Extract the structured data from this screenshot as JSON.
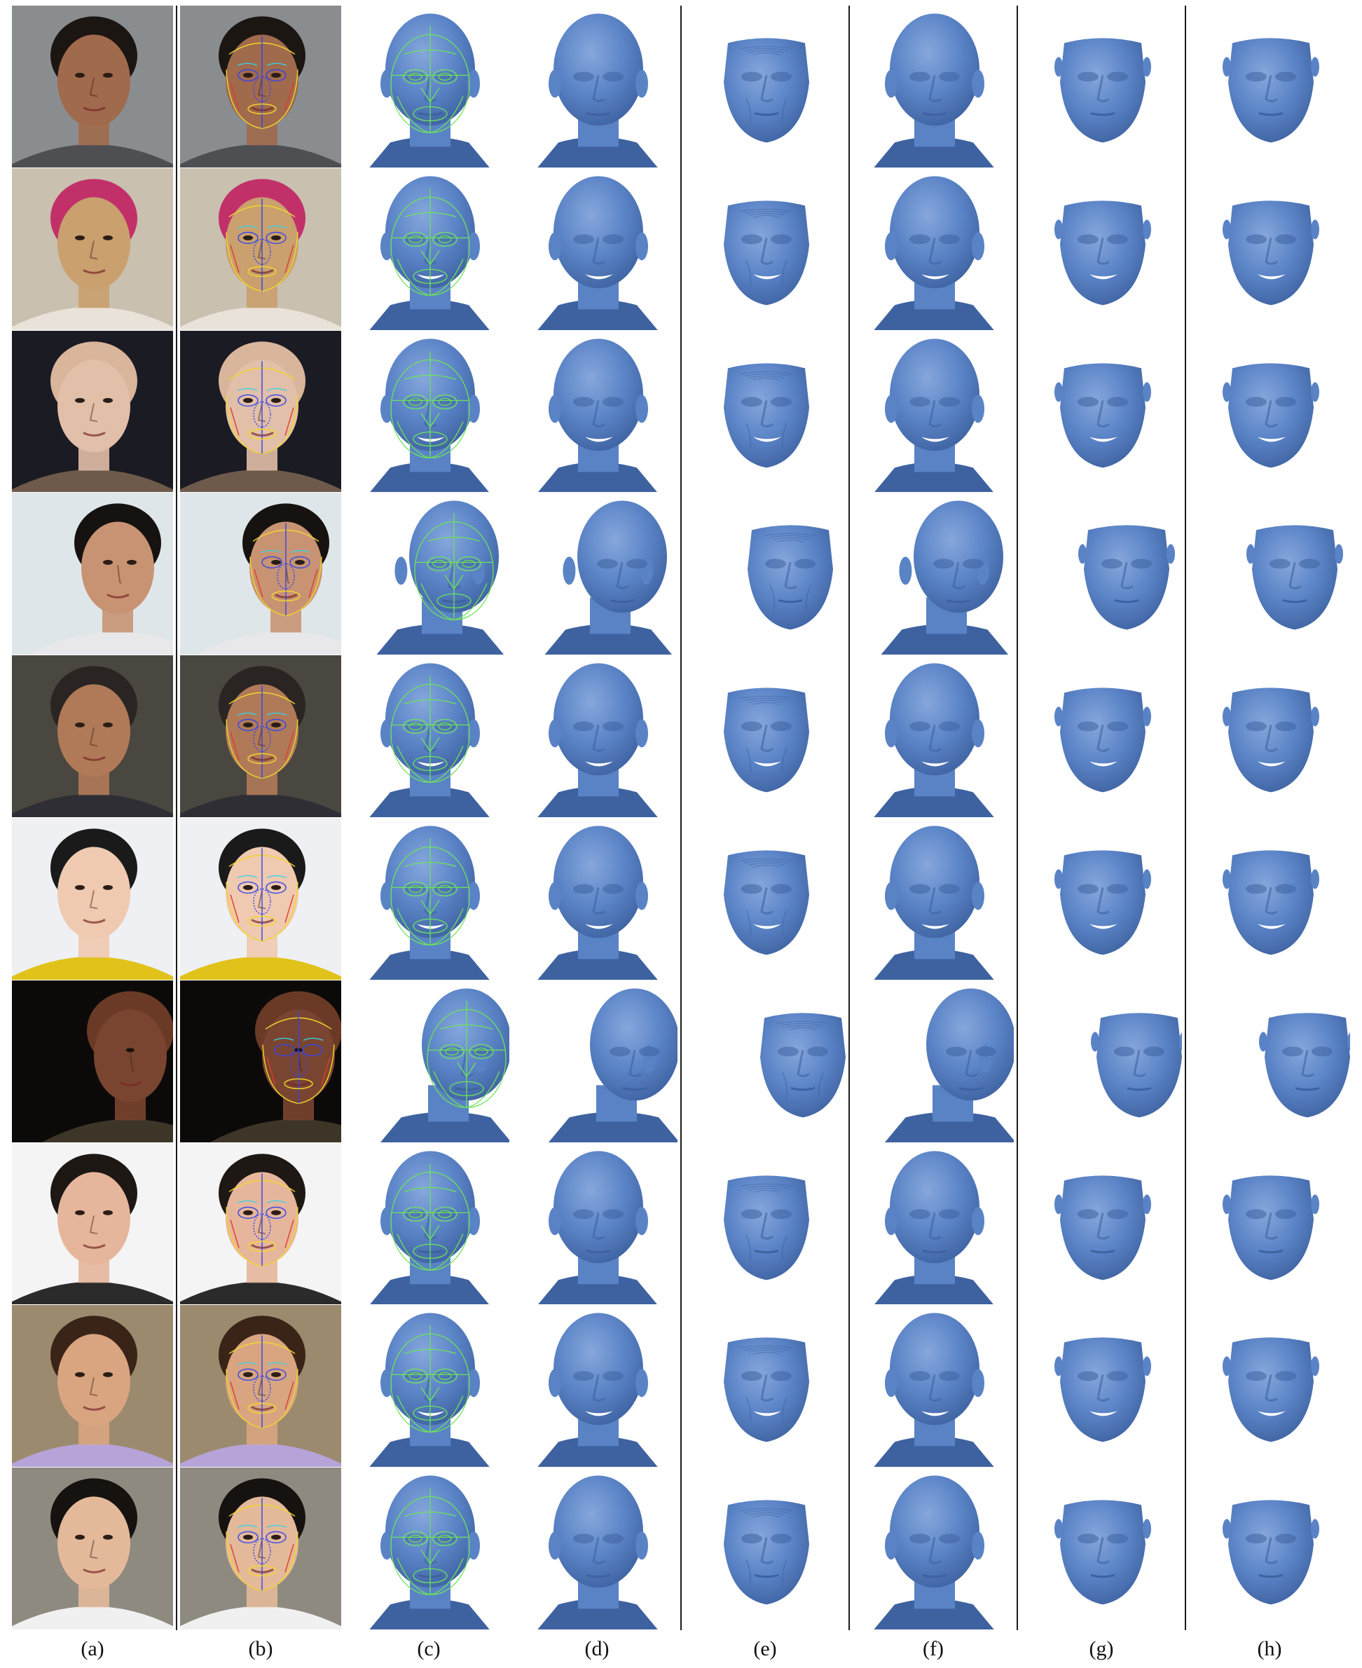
{
  "columns": [
    "(a)",
    "(b)",
    "(c)",
    "(d)",
    "(e)",
    "(f)",
    "(g)",
    "(h)"
  ],
  "colors": {
    "mesh_blue": "#5a83c6",
    "mesh_shadow": "#3e62a0",
    "mesh_highlight": "#86a7dc",
    "mesh_wire": "#6ce35a",
    "landmark_yellow": "#f2d62b",
    "landmark_blue": "#3344ee",
    "landmark_red": "#e23a2a",
    "divider": "#1a1a1a"
  },
  "rows": [
    {
      "bg": "#8a8d90",
      "skin": "#a06a4c",
      "hair": "#1c1613",
      "accent": "#4d4f52",
      "pose": 0
    },
    {
      "bg": "#c9c0b0",
      "skin": "#c9a06e",
      "hair": "#c2306a",
      "accent": "#e8e2d8",
      "pose": 0
    },
    {
      "bg": "#1b1b24",
      "skin": "#e2bfa8",
      "hair": "#d9b59c",
      "accent": "#6e5a4a",
      "pose": 0
    },
    {
      "bg": "#dfe6ea",
      "skin": "#c89373",
      "hair": "#151210",
      "accent": "#e8e8ea",
      "pose": 1
    },
    {
      "bg": "#4a4640",
      "skin": "#b07a58",
      "hair": "#2a2522",
      "accent": "#2e2e34",
      "pose": 0
    },
    {
      "bg": "#eef0f4",
      "skin": "#efc9b0",
      "hair": "#1a1a1a",
      "accent": "#e0c21a",
      "pose": 0
    },
    {
      "bg": "#0c0a09",
      "skin": "#7a4530",
      "hair": "#6a3a26",
      "accent": "#3d3528",
      "pose": 2
    },
    {
      "bg": "#f4f4f4",
      "skin": "#e6b69c",
      "hair": "#1e1815",
      "accent": "#2b2b2b",
      "pose": 0
    },
    {
      "bg": "#9c8a6e",
      "skin": "#d8a580",
      "hair": "#3a2418",
      "accent": "#b6a3d8",
      "pose": 0
    },
    {
      "bg": "#8e8a80",
      "skin": "#e3b99a",
      "hair": "#16120f",
      "accent": "#f0f0f0",
      "pose": 0
    }
  ]
}
